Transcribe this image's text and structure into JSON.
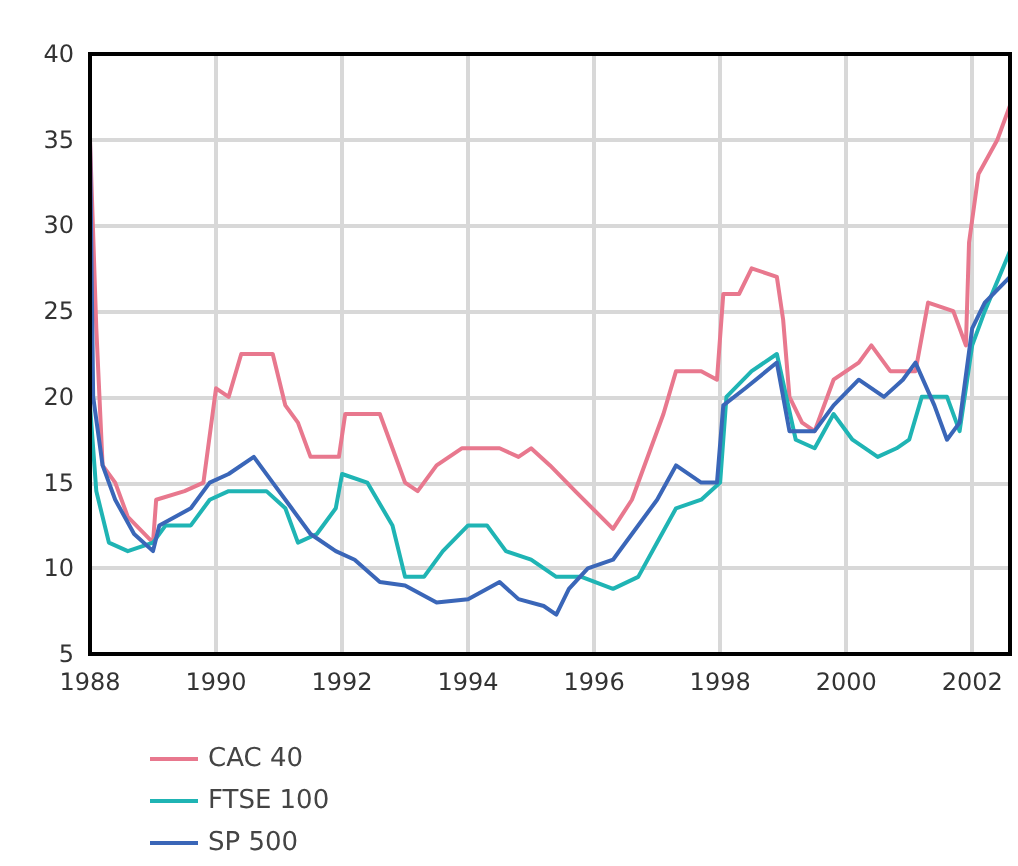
{
  "chart_data": {
    "type": "line",
    "xlim": [
      1988,
      2002.6
    ],
    "xticks": [
      1988,
      1990,
      1992,
      1994,
      1996,
      1998,
      2000,
      2002
    ],
    "ylim": [
      5,
      40
    ],
    "yticks": [
      5,
      10,
      15,
      20,
      25,
      30,
      35,
      40
    ],
    "grid": true,
    "legend": "bottom",
    "marker": "none",
    "line_style": "solid",
    "series": [
      {
        "name": "CAC 40",
        "color": "#e8788e",
        "x": [
          1988,
          1988.1,
          1988.2,
          1988.4,
          1988.6,
          1989,
          1989.05,
          1989.5,
          1989.8,
          1990,
          1990.2,
          1990.4,
          1990.9,
          1991.1,
          1991.3,
          1991.5,
          1991.95,
          1992.05,
          1992.6,
          1992.8,
          1993,
          1993.2,
          1993.5,
          1993.9,
          1994.5,
          1994.8,
          1995,
          1995.3,
          1995.7,
          1996.3,
          1996.6,
          1996.9,
          1997.1,
          1997.3,
          1997.7,
          1997.95,
          1998.05,
          1998.3,
          1998.5,
          1998.9,
          1999,
          1999.1,
          1999.3,
          1999.5,
          1999.8,
          2000.2,
          2000.4,
          2000.7,
          2001.1,
          2001.3,
          2001.7,
          2001.9,
          2001.95,
          2002.1,
          2002.4,
          2002.6
        ],
        "values": [
          35,
          24,
          16,
          15,
          13,
          11.5,
          14,
          14.5,
          15,
          20.5,
          20,
          22.5,
          22.5,
          19.5,
          18.5,
          16.5,
          16.5,
          19,
          19,
          17,
          15,
          14.5,
          16,
          17,
          17,
          16.5,
          17,
          16,
          14.5,
          12.3,
          14,
          17,
          19,
          21.5,
          21.5,
          21,
          26,
          26,
          27.5,
          27,
          24.5,
          20,
          18.5,
          18,
          21,
          22,
          23,
          21.5,
          21.5,
          25.5,
          25,
          23,
          29,
          33,
          35,
          37
        ]
      },
      {
        "name": "FTSE 100",
        "color": "#1fb4b4",
        "x": [
          1988,
          1988.1,
          1988.3,
          1988.6,
          1989,
          1989.2,
          1989.6,
          1989.9,
          1990.2,
          1990.8,
          1991.1,
          1991.3,
          1991.6,
          1991.9,
          1992,
          1992.4,
          1992.8,
          1993,
          1993.3,
          1993.6,
          1994,
          1994.3,
          1994.6,
          1995,
          1995.4,
          1995.8,
          1996.3,
          1996.7,
          1997,
          1997.3,
          1997.7,
          1998,
          1998.1,
          1998.5,
          1998.9,
          1999.2,
          1999.5,
          1999.8,
          2000.1,
          2000.5,
          2000.8,
          2001,
          2001.2,
          2001.6,
          2001.8,
          2002,
          2002.2,
          2002.6
        ],
        "values": [
          19.5,
          14.5,
          11.5,
          11,
          11.5,
          12.5,
          12.5,
          14,
          14.5,
          14.5,
          13.5,
          11.5,
          12,
          13.5,
          15.5,
          15,
          12.5,
          9.5,
          9.5,
          11,
          12.5,
          12.5,
          11,
          10.5,
          9.5,
          9.5,
          8.8,
          9.5,
          11.5,
          13.5,
          14,
          15,
          20,
          21.5,
          22.5,
          17.5,
          17,
          19,
          17.5,
          16.5,
          17,
          17.5,
          20,
          20,
          18,
          23,
          25,
          28.5
        ]
      },
      {
        "name": "SP 500",
        "color": "#3a66b8",
        "x": [
          1988,
          1988.05,
          1988.2,
          1988.4,
          1988.7,
          1989,
          1989.1,
          1989.6,
          1989.9,
          1990.2,
          1990.6,
          1990.9,
          1991.2,
          1991.5,
          1991.9,
          1992.2,
          1992.6,
          1993,
          1993.5,
          1994,
          1994.5,
          1994.8,
          1995.2,
          1995.4,
          1995.6,
          1995.9,
          1996.3,
          1996.6,
          1997,
          1997.3,
          1997.7,
          1997.95,
          1998.05,
          1998.4,
          1998.9,
          1999.1,
          1999.5,
          1999.8,
          2000.2,
          2000.6,
          2000.9,
          2001.1,
          2001.4,
          2001.6,
          2001.8,
          2002,
          2002.2,
          2002.6
        ],
        "values": [
          35,
          20,
          16,
          14,
          12,
          11,
          12.5,
          13.5,
          15,
          15.5,
          16.5,
          15,
          13.5,
          12,
          11,
          10.5,
          9.2,
          9,
          8,
          8.2,
          9.2,
          8.2,
          7.8,
          7.3,
          8.8,
          10,
          10.5,
          12,
          14,
          16,
          15,
          15,
          19.5,
          20.5,
          22,
          18,
          18,
          19.5,
          21,
          20,
          21,
          22,
          19.5,
          17.5,
          18.5,
          24,
          25.5,
          27
        ]
      }
    ]
  }
}
